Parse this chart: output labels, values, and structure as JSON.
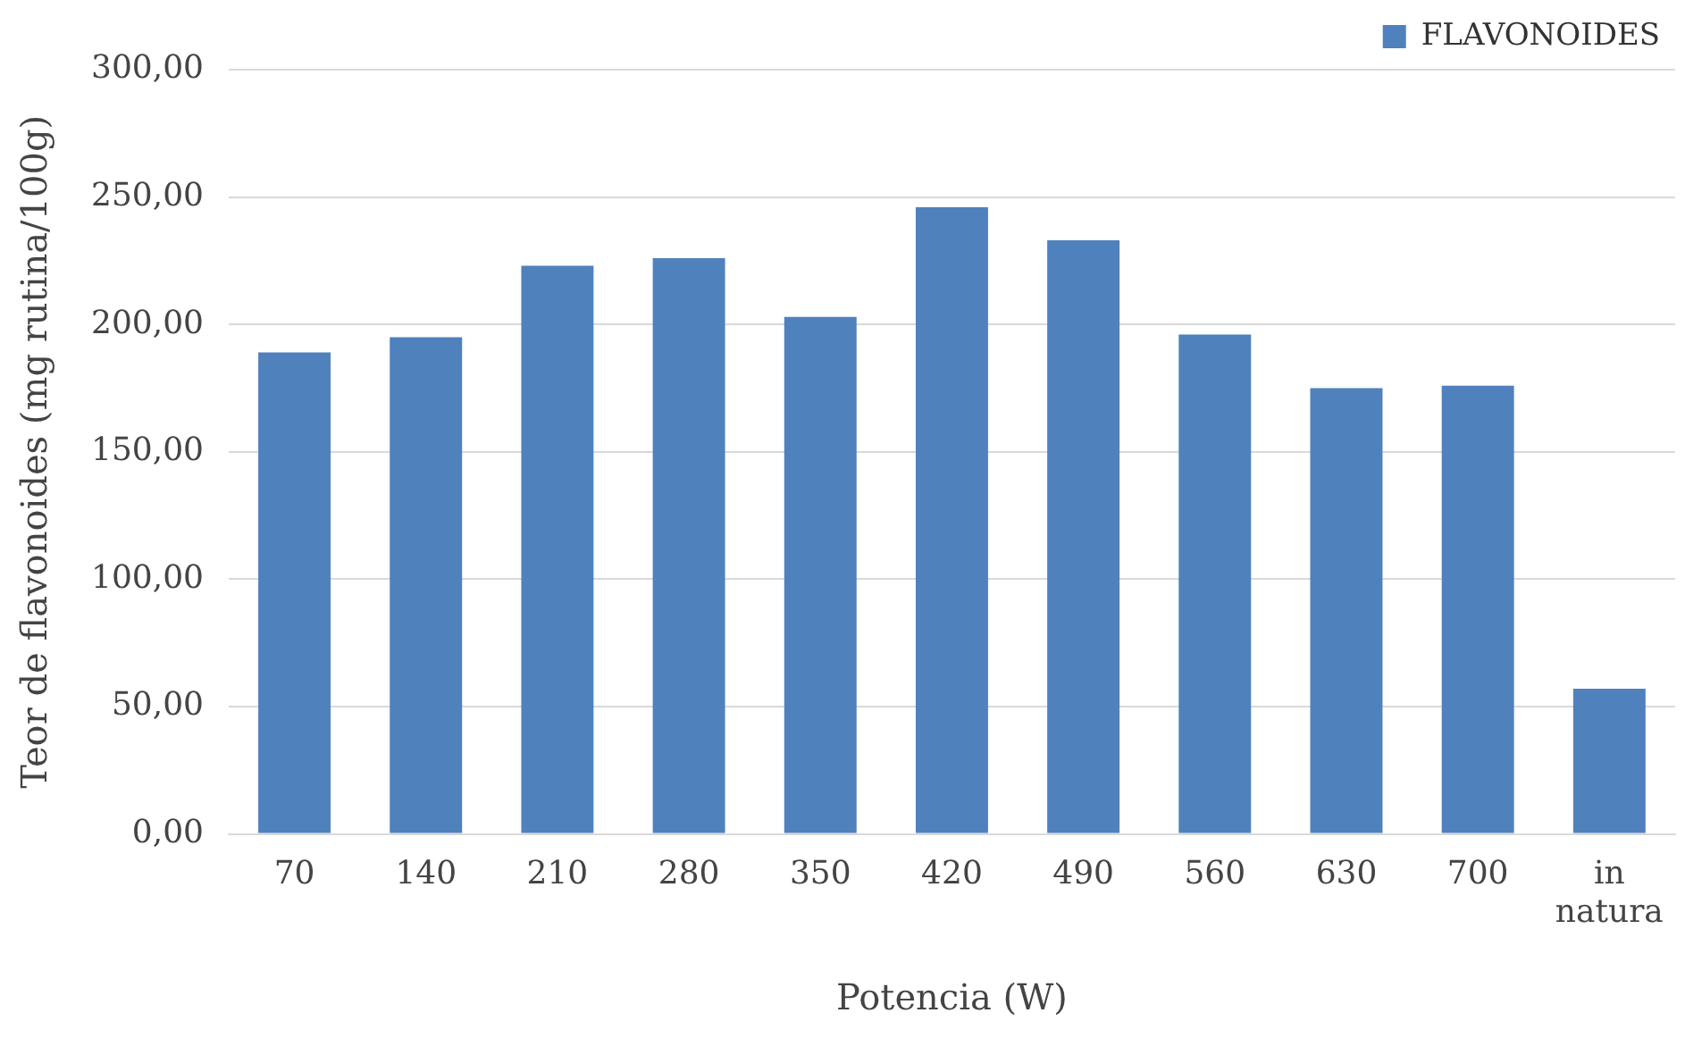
{
  "chart_data": {
    "type": "bar",
    "xlabel": "Potencia (W)",
    "ylabel": "Teor de flavonoides (mg rutina/100g)",
    "categories": [
      "70",
      "140",
      "210",
      "280",
      "350",
      "420",
      "490",
      "560",
      "630",
      "700",
      "in natura"
    ],
    "series": [
      {
        "name": "FLAVONOIDES",
        "color": "#4f81bd",
        "values": [
          189,
          195,
          223,
          226,
          203,
          246,
          233,
          196,
          175,
          176,
          57
        ]
      }
    ],
    "ylim": [
      0,
      300
    ],
    "yticks": [
      {
        "value": 0,
        "label": "0,00"
      },
      {
        "value": 50,
        "label": "50,00"
      },
      {
        "value": 100,
        "label": "100,00"
      },
      {
        "value": 150,
        "label": "150,00"
      },
      {
        "value": 200,
        "label": "200,00"
      },
      {
        "value": 250,
        "label": "250,00"
      },
      {
        "value": 300,
        "label": "300,00"
      }
    ],
    "grid": "y",
    "legend": "top right"
  }
}
